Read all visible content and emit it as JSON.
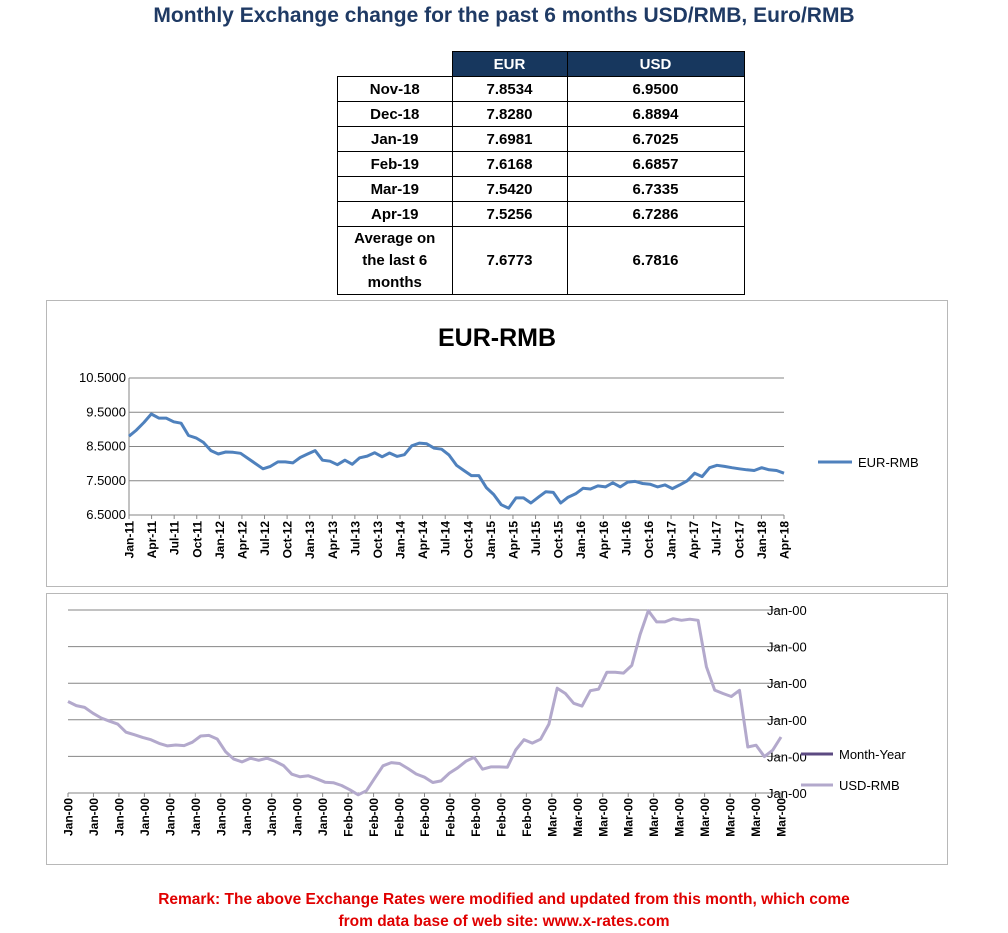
{
  "page": {
    "title": "Monthly Exchange change for the past 6 months USD/RMB, Euro/RMB",
    "remark_line1": "Remark: The above Exchange Rates were modified and updated from this month, which come",
    "remark_line2": "from data base of web site: www.x-rates.com"
  },
  "table": {
    "headers": [
      "EUR",
      "USD"
    ],
    "rows": [
      {
        "month": "Nov-18",
        "eur": "7.8534",
        "usd": "6.9500"
      },
      {
        "month": "Dec-18",
        "eur": "7.8280",
        "usd": "6.8894"
      },
      {
        "month": "Jan-19",
        "eur": "7.6981",
        "usd": "6.7025"
      },
      {
        "month": "Feb-19",
        "eur": "7.6168",
        "usd": "6.6857"
      },
      {
        "month": "Mar-19",
        "eur": "7.5420",
        "usd": "6.7335"
      },
      {
        "month": "Apr-19",
        "eur": "7.5256",
        "usd": "6.7286"
      }
    ],
    "average": {
      "label_line1": "Average on",
      "label_line2": "the last 6",
      "label_line3": "months",
      "eur": "7.6773",
      "usd": "6.7816"
    }
  },
  "chart_data": [
    {
      "type": "line",
      "title": "EUR-RMB",
      "series_name": "EUR-RMB",
      "color": "#4f81bd",
      "y_ticks": [
        "10.5000",
        "9.5000",
        "8.5000",
        "7.5000",
        "6.5000"
      ],
      "ylim": [
        6.5,
        10.5
      ],
      "grid": true,
      "legend": "right",
      "x_tick_labels": [
        "Jan-11",
        "Apr-11",
        "Jul-11",
        "Oct-11",
        "Jan-12",
        "Apr-12",
        "Jul-12",
        "Oct-12",
        "Jan-13",
        "Apr-13",
        "Jul-13",
        "Oct-13",
        "Jan-14",
        "Apr-14",
        "Jul-14",
        "Oct-14",
        "Jan-15",
        "Apr-15",
        "Jul-15",
        "Oct-15",
        "Jan-16",
        "Apr-16",
        "Jul-16",
        "Oct-16",
        "Jan-17",
        "Apr-17",
        "Jul-17",
        "Oct-17",
        "Jan-18",
        "Apr-18"
      ],
      "values": [
        8.8,
        8.98,
        9.2,
        9.45,
        9.33,
        9.33,
        9.22,
        9.18,
        8.82,
        8.75,
        8.62,
        8.38,
        8.28,
        8.34,
        8.33,
        8.3,
        8.15,
        8.0,
        7.85,
        7.92,
        8.05,
        8.05,
        8.02,
        8.18,
        8.28,
        8.38,
        8.1,
        8.07,
        7.97,
        8.1,
        7.98,
        8.17,
        8.22,
        8.32,
        8.2,
        8.31,
        8.21,
        8.26,
        8.52,
        8.6,
        8.58,
        8.45,
        8.42,
        8.25,
        7.95,
        7.8,
        7.65,
        7.65,
        7.3,
        7.1,
        6.8,
        6.7,
        7.0,
        7.0,
        6.85,
        7.02,
        7.18,
        7.16,
        6.85,
        7.02,
        7.12,
        7.28,
        7.26,
        7.35,
        7.32,
        7.44,
        7.32,
        7.46,
        7.48,
        7.42,
        7.4,
        7.32,
        7.38,
        7.27,
        7.38,
        7.5,
        7.72,
        7.62,
        7.88,
        7.95,
        7.92,
        7.88,
        7.85,
        7.82,
        7.8,
        7.88,
        7.82,
        7.8,
        7.72
      ]
    },
    {
      "type": "line",
      "series": [
        {
          "name": "Month-Year",
          "color": "#5c4a82",
          "values": []
        },
        {
          "name": "USD-RMB",
          "color": "#b3a9cc",
          "values": [
            6.5,
            6.482,
            6.474,
            6.449,
            6.428,
            6.414,
            6.401,
            6.366,
            6.355,
            6.343,
            6.333,
            6.317,
            6.306,
            6.31,
            6.307,
            6.322,
            6.349,
            6.352,
            6.336,
            6.281,
            6.248,
            6.236,
            6.252,
            6.243,
            6.252,
            6.238,
            6.22,
            6.182,
            6.171,
            6.175,
            6.162,
            6.147,
            6.145,
            6.133,
            6.114,
            6.092,
            6.11,
            6.165,
            6.219,
            6.233,
            6.229,
            6.207,
            6.183,
            6.169,
            6.146,
            6.153,
            6.187,
            6.21,
            6.239,
            6.256,
            6.204,
            6.214,
            6.214,
            6.213,
            6.288,
            6.333,
            6.318,
            6.335,
            6.401,
            6.558,
            6.535,
            6.492,
            6.48,
            6.547,
            6.554,
            6.628,
            6.628,
            6.624,
            6.658,
            6.793,
            6.897,
            6.848,
            6.848,
            6.862,
            6.855,
            6.86,
            6.855,
            6.652,
            6.55,
            6.535,
            6.522,
            6.549,
            6.301,
            6.309,
            6.259,
            6.287,
            6.345
          ]
        }
      ],
      "y_tick_labels": [
        "Jan-00",
        "Jan-00",
        "Jan-00",
        "Jan-00",
        "Jan-00",
        "Jan-00"
      ],
      "x_tick_labels": [
        "Jan-00",
        "Jan-00",
        "Jan-00",
        "Jan-00",
        "Jan-00",
        "Jan-00",
        "Jan-00",
        "Jan-00",
        "Jan-00",
        "Jan-00",
        "Jan-00",
        "Feb-00",
        "Feb-00",
        "Feb-00",
        "Feb-00",
        "Feb-00",
        "Feb-00",
        "Feb-00",
        "Feb-00",
        "Mar-00",
        "Mar-00",
        "Mar-00",
        "Mar-00",
        "Mar-00",
        "Mar-00",
        "Mar-00",
        "Mar-00",
        "Mar-00",
        "Mar-00"
      ],
      "grid": true,
      "legend": "right"
    }
  ]
}
